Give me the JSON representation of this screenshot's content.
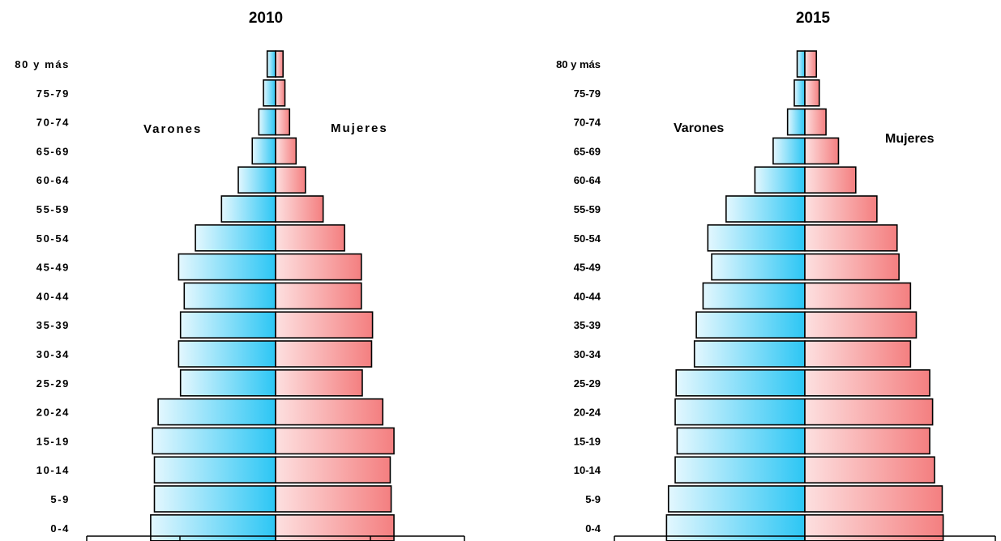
{
  "colors": {
    "male": "#33c8f5",
    "female": "#f58a8a",
    "outline": "#000000"
  },
  "chart_data": [
    {
      "type": "bar",
      "title": "2010",
      "categories": [
        "80 y más",
        "75-79",
        "70-74",
        "65-69",
        "60-64",
        "55-59",
        "50-54",
        "45-49",
        "40-44",
        "35-39",
        "30-34",
        "25-29",
        "20-24",
        "15-19",
        "10-14",
        "5-9",
        "0-4"
      ],
      "series": [
        {
          "name": "Varones",
          "values": [
            0.9,
            1.3,
            1.8,
            2.5,
            4.0,
            5.8,
            8.6,
            10.4,
            9.8,
            10.2,
            10.4,
            10.2,
            12.6,
            13.2,
            13.0,
            13.0,
            13.4
          ]
        },
        {
          "name": "Mujeres",
          "values": [
            0.8,
            1.0,
            1.5,
            2.2,
            3.2,
            5.1,
            7.4,
            9.2,
            9.2,
            10.4,
            10.3,
            9.3,
            11.5,
            12.7,
            12.3,
            12.4,
            12.7
          ]
        }
      ],
      "xlim": [
        -20,
        20
      ],
      "grid": false
    },
    {
      "type": "bar",
      "title": "2015",
      "categories": [
        "80 y más",
        "75-79",
        "70-74",
        "65-69",
        "60-64",
        "55-59",
        "50-54",
        "45-49",
        "40-44",
        "35-39",
        "30-34",
        "25-29",
        "20-24",
        "15-19",
        "10-14",
        "5-9",
        "0-4"
      ],
      "series": [
        {
          "name": "Varones",
          "values": [
            0.8,
            1.1,
            1.8,
            3.3,
            5.2,
            8.2,
            10.1,
            9.7,
            10.6,
            11.3,
            11.5,
            13.4,
            13.5,
            13.3,
            13.5,
            14.2,
            14.4
          ]
        },
        {
          "name": "Mujeres",
          "values": [
            1.2,
            1.5,
            2.2,
            3.5,
            5.3,
            7.5,
            9.6,
            9.8,
            11.0,
            11.6,
            11.0,
            13.0,
            13.3,
            13.0,
            13.5,
            14.3,
            14.4
          ]
        }
      ],
      "xlim": [
        -15,
        15
      ],
      "grid": false
    }
  ]
}
